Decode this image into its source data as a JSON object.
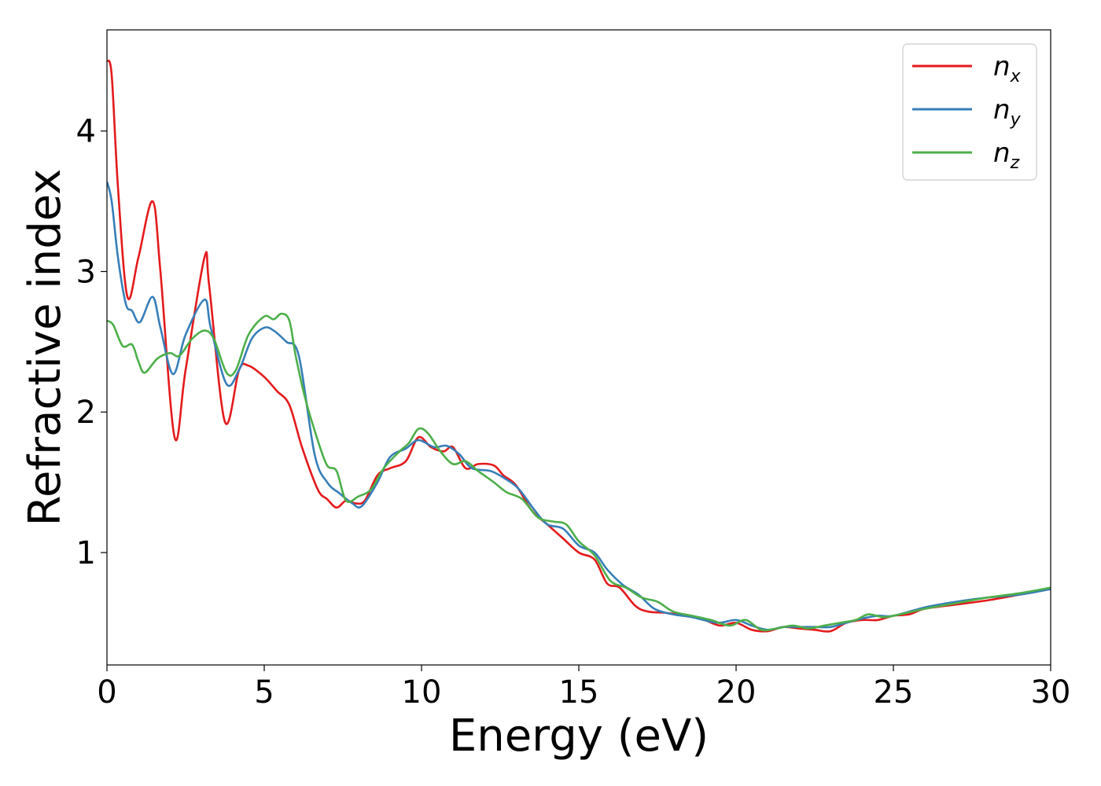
{
  "chart_data": {
    "type": "line",
    "xlabel": "Energy (eV)",
    "ylabel": "Refractive index",
    "xlim": [
      0,
      30
    ],
    "ylim": [
      0.2,
      4.72
    ],
    "xticks": [
      "0",
      "5",
      "10",
      "15",
      "20",
      "25",
      "30"
    ],
    "yticks": [
      "1",
      "2",
      "3",
      "4"
    ],
    "grid": false,
    "legend_position": "top-right",
    "series": [
      {
        "name": "n",
        "subscript": "x",
        "color": "#e41a1c",
        "x": [
          0,
          0.15,
          0.35,
          0.65,
          1.0,
          1.45,
          1.7,
          2.15,
          2.5,
          3.1,
          3.25,
          3.75,
          4.2,
          4.5,
          5.0,
          5.4,
          5.8,
          6.2,
          6.7,
          7.0,
          7.3,
          7.6,
          7.9,
          8.2,
          8.6,
          9.0,
          9.5,
          9.9,
          10.3,
          10.7,
          11.0,
          11.4,
          11.8,
          12.3,
          12.6,
          13.0,
          13.5,
          14.0,
          14.5,
          15.0,
          15.5,
          15.9,
          16.3,
          16.8,
          17.2,
          17.8,
          18.5,
          19.0,
          19.5,
          20.0,
          20.5,
          21.0,
          21.5,
          22.0,
          22.5,
          23.0,
          23.5,
          24.0,
          24.5,
          25.0,
          25.5,
          26.0,
          27.0,
          28.0,
          29.0,
          30.0
        ],
        "y": [
          4.5,
          4.4,
          3.6,
          2.82,
          3.1,
          3.5,
          3.0,
          1.82,
          2.3,
          3.1,
          2.9,
          1.93,
          2.3,
          2.33,
          2.25,
          2.15,
          2.05,
          1.75,
          1.45,
          1.38,
          1.32,
          1.37,
          1.35,
          1.37,
          1.55,
          1.6,
          1.65,
          1.82,
          1.75,
          1.72,
          1.75,
          1.6,
          1.63,
          1.62,
          1.55,
          1.48,
          1.3,
          1.2,
          1.1,
          1.0,
          0.95,
          0.78,
          0.75,
          0.62,
          0.58,
          0.57,
          0.55,
          0.52,
          0.48,
          0.5,
          0.45,
          0.44,
          0.47,
          0.46,
          0.45,
          0.44,
          0.5,
          0.52,
          0.52,
          0.55,
          0.56,
          0.6,
          0.63,
          0.66,
          0.7,
          0.74
        ]
      },
      {
        "name": "n",
        "subscript": "y",
        "color": "#377eb8",
        "x": [
          0,
          0.15,
          0.35,
          0.6,
          0.8,
          1.05,
          1.45,
          1.7,
          2.1,
          2.5,
          3.1,
          3.3,
          3.8,
          4.2,
          4.6,
          5.0,
          5.3,
          5.7,
          6.1,
          6.6,
          7.0,
          7.4,
          7.8,
          8.1,
          8.6,
          9.0,
          9.5,
          9.9,
          10.4,
          10.8,
          11.2,
          11.6,
          12.2,
          12.7,
          13.1,
          13.6,
          14.0,
          14.5,
          15.0,
          15.5,
          15.9,
          16.4,
          16.9,
          17.4,
          18.0,
          18.6,
          19.4,
          20.0,
          20.5,
          21.0,
          21.5,
          22.0,
          22.5,
          23.0,
          23.5,
          24.0,
          24.5,
          25.0,
          26.0,
          27.0,
          28.0,
          29.0,
          30.0
        ],
        "y": [
          3.64,
          3.5,
          3.1,
          2.77,
          2.72,
          2.64,
          2.82,
          2.6,
          2.27,
          2.55,
          2.8,
          2.6,
          2.2,
          2.3,
          2.52,
          2.6,
          2.58,
          2.5,
          2.4,
          1.7,
          1.5,
          1.42,
          1.35,
          1.33,
          1.5,
          1.68,
          1.74,
          1.8,
          1.75,
          1.76,
          1.7,
          1.6,
          1.58,
          1.52,
          1.45,
          1.3,
          1.2,
          1.17,
          1.05,
          1.0,
          0.88,
          0.77,
          0.7,
          0.6,
          0.56,
          0.54,
          0.5,
          0.52,
          0.48,
          0.45,
          0.47,
          0.47,
          0.47,
          0.47,
          0.5,
          0.53,
          0.55,
          0.55,
          0.61,
          0.65,
          0.68,
          0.7,
          0.74
        ]
      },
      {
        "name": "n",
        "subscript": "z",
        "color": "#4daf4a",
        "x": [
          0,
          0.2,
          0.5,
          0.8,
          1.0,
          1.2,
          1.6,
          2.0,
          2.3,
          2.7,
          3.1,
          3.4,
          3.8,
          4.1,
          4.5,
          5.0,
          5.3,
          5.55,
          5.8,
          6.0,
          6.3,
          6.7,
          7.0,
          7.3,
          7.6,
          8.0,
          8.4,
          8.8,
          9.3,
          9.6,
          9.9,
          10.2,
          10.6,
          11.0,
          11.4,
          11.8,
          12.3,
          12.7,
          13.2,
          13.7,
          14.2,
          14.6,
          15.0,
          15.5,
          16.0,
          16.5,
          17.0,
          17.5,
          18.0,
          18.6,
          19.2,
          19.8,
          20.3,
          20.8,
          21.3,
          21.8,
          22.3,
          22.8,
          23.3,
          23.8,
          24.2,
          24.7,
          25.2,
          26.0,
          27.0,
          28.0,
          29.0,
          30.0
        ],
        "y": [
          2.65,
          2.62,
          2.47,
          2.48,
          2.36,
          2.28,
          2.38,
          2.42,
          2.4,
          2.52,
          2.58,
          2.52,
          2.28,
          2.3,
          2.55,
          2.68,
          2.66,
          2.7,
          2.65,
          2.4,
          2.1,
          1.8,
          1.62,
          1.58,
          1.37,
          1.4,
          1.45,
          1.6,
          1.72,
          1.78,
          1.88,
          1.85,
          1.72,
          1.63,
          1.65,
          1.58,
          1.5,
          1.43,
          1.38,
          1.25,
          1.22,
          1.2,
          1.08,
          0.98,
          0.8,
          0.75,
          0.68,
          0.65,
          0.58,
          0.55,
          0.52,
          0.48,
          0.52,
          0.45,
          0.46,
          0.48,
          0.46,
          0.48,
          0.5,
          0.52,
          0.56,
          0.54,
          0.56,
          0.6,
          0.64,
          0.68,
          0.71,
          0.75
        ]
      }
    ]
  }
}
